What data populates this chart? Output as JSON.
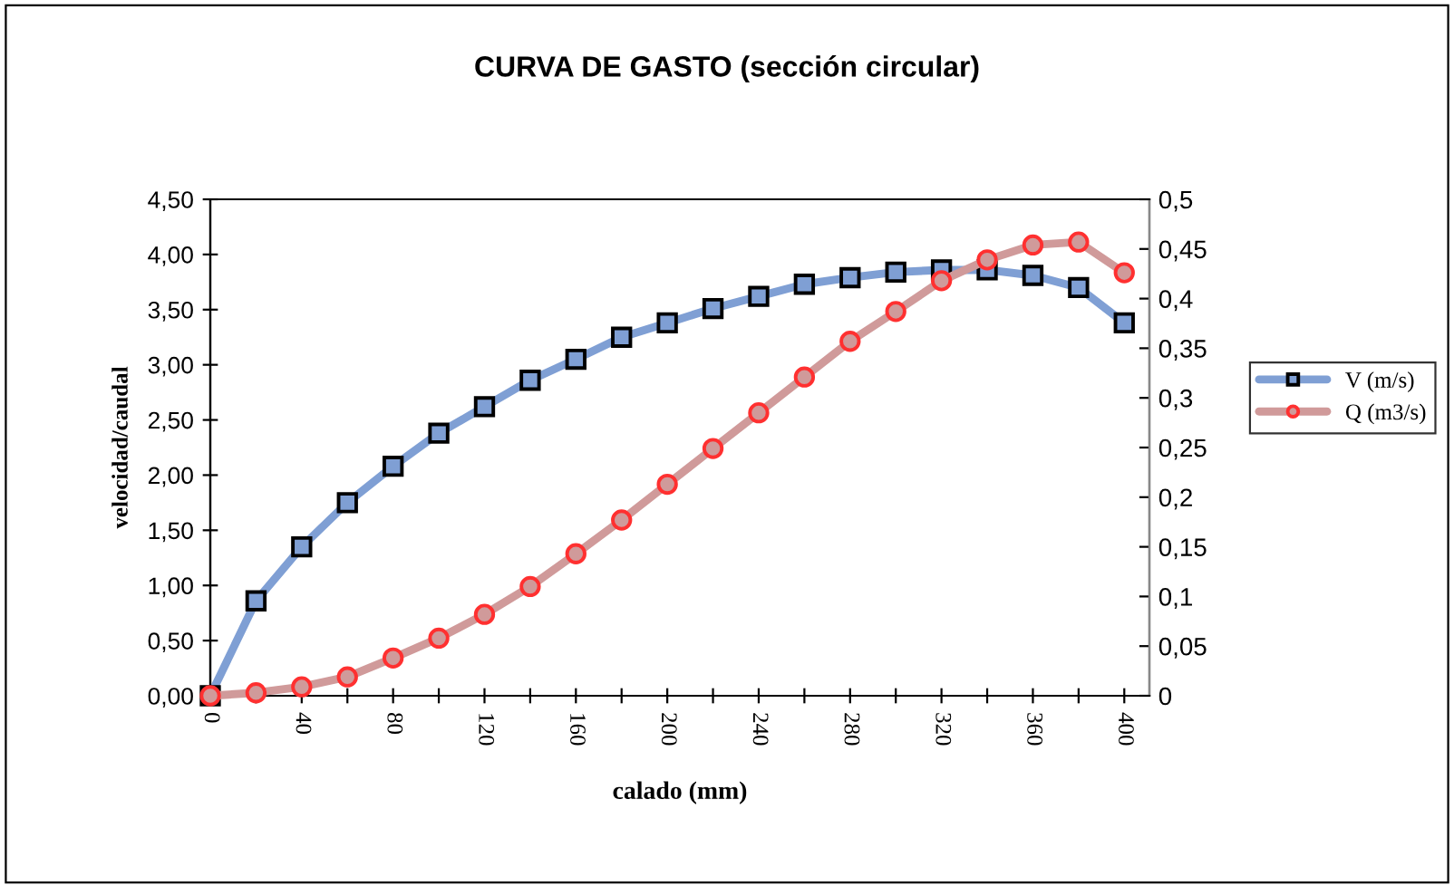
{
  "chart_data": {
    "type": "line",
    "title": "CURVA DE GASTO (sección circular)",
    "xlabel": "calado (mm)",
    "ylabel": "velocidad/caudal",
    "x": [
      0,
      20,
      40,
      60,
      80,
      100,
      120,
      140,
      160,
      180,
      200,
      220,
      240,
      260,
      280,
      300,
      320,
      340,
      360,
      380,
      400
    ],
    "series": [
      {
        "name": "V (m/s)",
        "color": "#7f9fd4",
        "marker": "square",
        "values": [
          0,
          0.86,
          1.35,
          1.75,
          2.08,
          2.38,
          2.62,
          2.86,
          3.05,
          3.25,
          3.38,
          3.51,
          3.62,
          3.73,
          3.79,
          3.84,
          3.86,
          3.86,
          3.81,
          3.7,
          3.38
        ]
      },
      {
        "name": "Q (m3/s)",
        "color": "#d09a9a",
        "marker": "circle",
        "axis": "y2",
        "values": [
          0,
          0.003,
          0.009,
          0.019,
          0.038,
          0.058,
          0.082,
          0.11,
          0.143,
          0.177,
          0.213,
          0.249,
          0.285,
          0.321,
          0.357,
          0.387,
          0.418,
          0.439,
          0.454,
          0.457,
          0.426
        ]
      }
    ],
    "xlim": [
      0,
      411
    ],
    "xticks": [
      0,
      {
        "value": 20,
        "label": null
      },
      40,
      {
        "value": 60,
        "label": null
      },
      80,
      {
        "value": 100,
        "label": null
      },
      120,
      {
        "value": 140,
        "label": null
      },
      160,
      {
        "value": 180,
        "label": null
      },
      200,
      {
        "value": 220,
        "label": null
      },
      240,
      {
        "value": 260,
        "label": null
      },
      280,
      {
        "value": 300,
        "label": null
      },
      320,
      {
        "value": 340,
        "label": null
      },
      360,
      {
        "value": 380,
        "label": null
      },
      400
    ],
    "ylim": [
      0,
      4.5
    ],
    "yticks": [
      {
        "value": 0,
        "label": "0,00"
      },
      {
        "value": 0.5,
        "label": "0,50"
      },
      {
        "value": 1,
        "label": "1,00"
      },
      {
        "value": 1.5,
        "label": "1,50"
      },
      {
        "value": 2,
        "label": "2,00"
      },
      {
        "value": 2.5,
        "label": "2,50"
      },
      {
        "value": 3,
        "label": "3,00"
      },
      {
        "value": 3.5,
        "label": "3,50"
      },
      {
        "value": 4,
        "label": "4,00"
      },
      {
        "value": 4.5,
        "label": "4,50"
      }
    ],
    "y2lim": [
      0,
      0.5
    ],
    "y2ticks": [
      0,
      {
        "value": 0.05,
        "label": "0,05"
      },
      {
        "value": 0.1,
        "label": "0,1"
      },
      {
        "value": 0.15,
        "label": "0,15"
      },
      {
        "value": 0.2,
        "label": "0,2"
      },
      {
        "value": 0.25,
        "label": "0,25"
      },
      {
        "value": 0.3,
        "label": "0,3"
      },
      {
        "value": 0.35,
        "label": "0,35"
      },
      {
        "value": 0.4,
        "label": "0,4"
      },
      {
        "value": 0.45,
        "label": "0,45"
      },
      {
        "value": 0.5,
        "label": "0,5"
      }
    ],
    "grid": false,
    "legend": "right",
    "line_style": "solid"
  }
}
